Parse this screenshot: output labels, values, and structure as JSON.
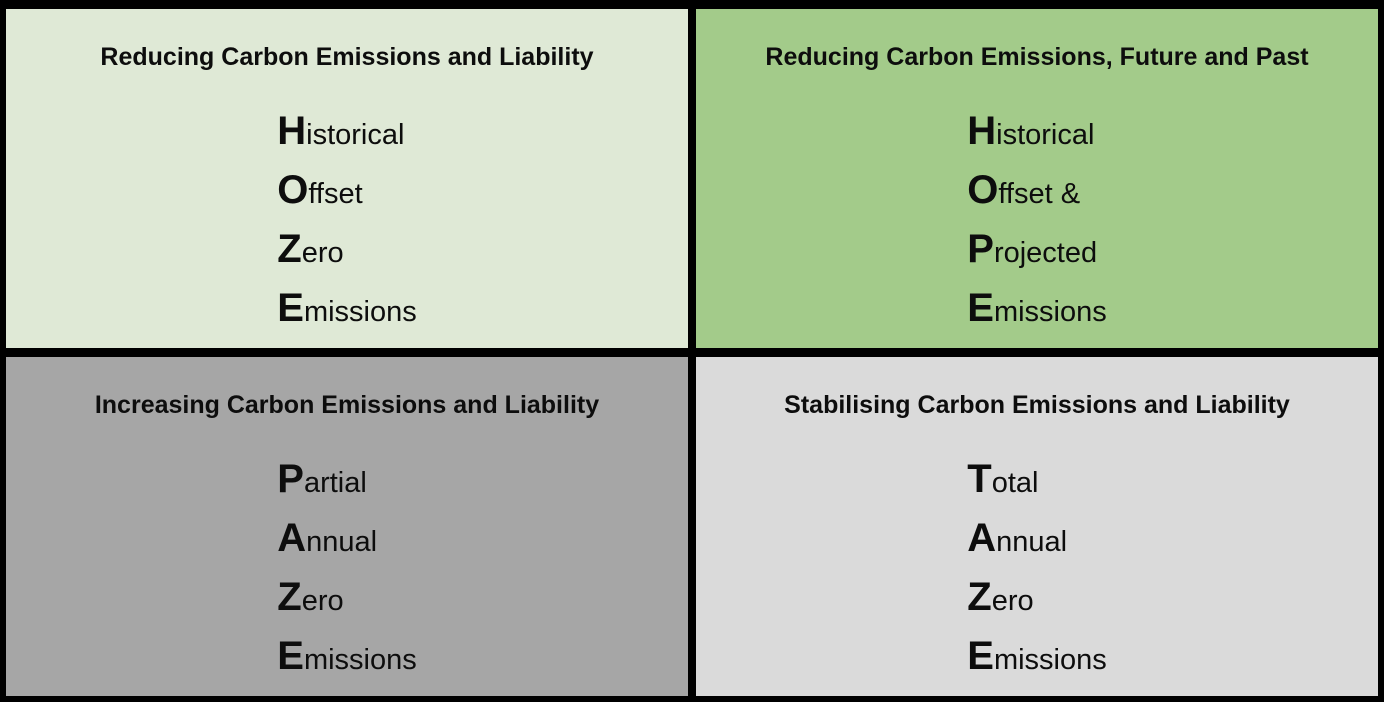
{
  "colors": {
    "frame": "#000000",
    "text": "#0d0d0d",
    "quadrant_top_left_bg": "#dfe9d6",
    "quadrant_top_right_bg": "#a3cb8a",
    "quadrant_bottom_left_bg": "#a6a6a6",
    "quadrant_bottom_right_bg": "#dadada"
  },
  "quadrants": [
    {
      "position": "top-left",
      "title": "Reducing Carbon Emissions and Liability",
      "acronym": "HOZE",
      "lines": [
        {
          "initial": "H",
          "rest": "istorical"
        },
        {
          "initial": "O",
          "rest": "ffset"
        },
        {
          "initial": "Z",
          "rest": "ero"
        },
        {
          "initial": "E",
          "rest": "missions"
        }
      ]
    },
    {
      "position": "top-right",
      "title": "Reducing Carbon Emissions, Future and Past",
      "acronym": "HOPE",
      "lines": [
        {
          "initial": "H",
          "rest": "istorical"
        },
        {
          "initial": "O",
          "rest": "ffset &"
        },
        {
          "initial": "P",
          "rest": "rojected"
        },
        {
          "initial": "E",
          "rest": "missions"
        }
      ]
    },
    {
      "position": "bottom-left",
      "title": "Increasing Carbon Emissions and Liability",
      "acronym": "PAZE",
      "lines": [
        {
          "initial": "P",
          "rest": "artial"
        },
        {
          "initial": "A",
          "rest": "nnual"
        },
        {
          "initial": "Z",
          "rest": "ero"
        },
        {
          "initial": "E",
          "rest": "missions"
        }
      ]
    },
    {
      "position": "bottom-right",
      "title": "Stabilising Carbon Emissions and Liability",
      "acronym": "TAZE",
      "lines": [
        {
          "initial": "T",
          "rest": "otal"
        },
        {
          "initial": "A",
          "rest": "nnual"
        },
        {
          "initial": "Z",
          "rest": "ero"
        },
        {
          "initial": "E",
          "rest": "missions"
        }
      ]
    }
  ]
}
